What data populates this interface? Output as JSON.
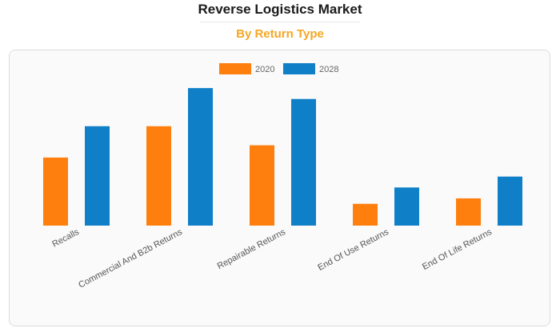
{
  "header": {
    "title": "Reverse Logistics Market",
    "subtitle": "By Return Type"
  },
  "colors": {
    "series_2020": "#ff7f0e",
    "series_2028": "#0f7fc8",
    "subtitle": "#f5a623"
  },
  "chart_data": {
    "type": "bar",
    "title": "Reverse Logistics Market",
    "subtitle": "By Return Type",
    "categories": [
      "Recalls",
      "Commercial And B2b Returns",
      "Repairable Returns",
      "End Of Use Returns",
      "End Of Life Returns"
    ],
    "series": [
      {
        "name": "2020",
        "color": "#ff7f0e",
        "values": [
          50,
          73,
          59,
          16,
          20
        ]
      },
      {
        "name": "2028",
        "color": "#0f7fc8",
        "values": [
          73,
          101,
          93,
          28,
          36
        ]
      }
    ],
    "ylim": [
      0,
      104
    ],
    "grid": false,
    "y_axis_visible": false,
    "legend_position": "top-center",
    "xlabel": "",
    "ylabel": ""
  }
}
